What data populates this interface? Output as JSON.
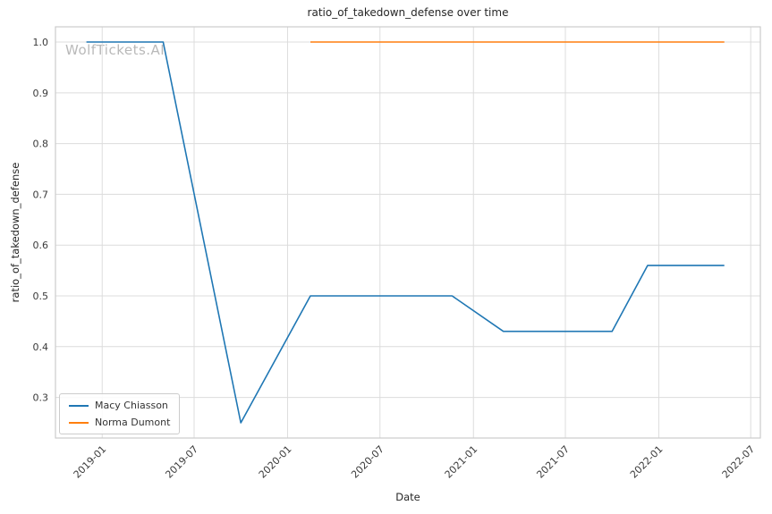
{
  "chart_data": {
    "type": "line",
    "title": "ratio_of_takedown_defense over time",
    "xlabel": "Date",
    "ylabel": "ratio_of_takedown_defense",
    "watermark": "WolfTickets.AI",
    "grid": true,
    "legend_position": "lower left",
    "grid_color": "#dcdcdc",
    "border_color": "#cccccc",
    "x_ticks": [
      "2019-01",
      "2019-07",
      "2020-01",
      "2020-07",
      "2021-01",
      "2021-07",
      "2022-01",
      "2022-07"
    ],
    "y_ticks": [
      0.3,
      0.4,
      0.5,
      0.6,
      0.7,
      0.8,
      0.9,
      1.0
    ],
    "xlim": [
      "2018-10-01",
      "2022-07-20"
    ],
    "ylim": [
      0.22,
      1.03
    ],
    "series": [
      {
        "name": "Macy Chiasson",
        "color": "#1f77b4",
        "points": [
          [
            "2018-12-01",
            1.0
          ],
          [
            "2019-05-01",
            1.0
          ],
          [
            "2019-10-01",
            0.25
          ],
          [
            "2020-02-15",
            0.5
          ],
          [
            "2020-11-20",
            0.5
          ],
          [
            "2021-03-01",
            0.43
          ],
          [
            "2021-10-01",
            0.43
          ],
          [
            "2021-12-10",
            0.56
          ],
          [
            "2022-05-10",
            0.56
          ]
        ]
      },
      {
        "name": "Norma Dumont",
        "color": "#ff7f0e",
        "points": [
          [
            "2020-02-15",
            1.0
          ],
          [
            "2022-05-10",
            1.0
          ]
        ]
      }
    ]
  }
}
